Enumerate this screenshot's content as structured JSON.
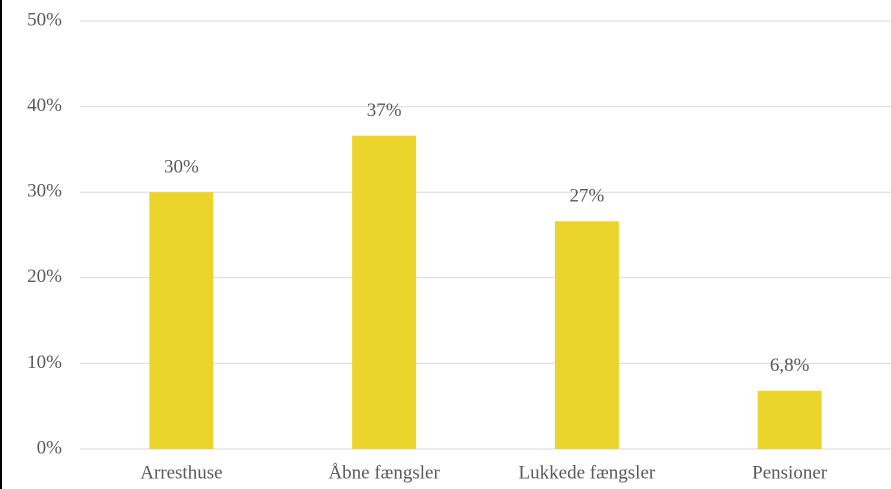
{
  "chart_data": {
    "type": "bar",
    "categories": [
      "Arresthuse",
      "Åbne fængsler",
      "Lukkede fængsler",
      "Pensioner"
    ],
    "values": [
      30,
      36.6,
      26.6,
      6.8
    ],
    "value_labels": [
      "30%",
      "37%",
      "27%",
      "6,8%"
    ],
    "color": "#ebd42b",
    "ylim": [
      0,
      50
    ],
    "yticks": [
      {
        "value": 0,
        "label": "0%"
      },
      {
        "value": 10,
        "label": "10%"
      },
      {
        "value": 20,
        "label": "20%"
      },
      {
        "value": 30,
        "label": "30%"
      },
      {
        "value": 40,
        "label": "40%"
      },
      {
        "value": 50,
        "label": "50%"
      }
    ],
    "grid": true
  }
}
